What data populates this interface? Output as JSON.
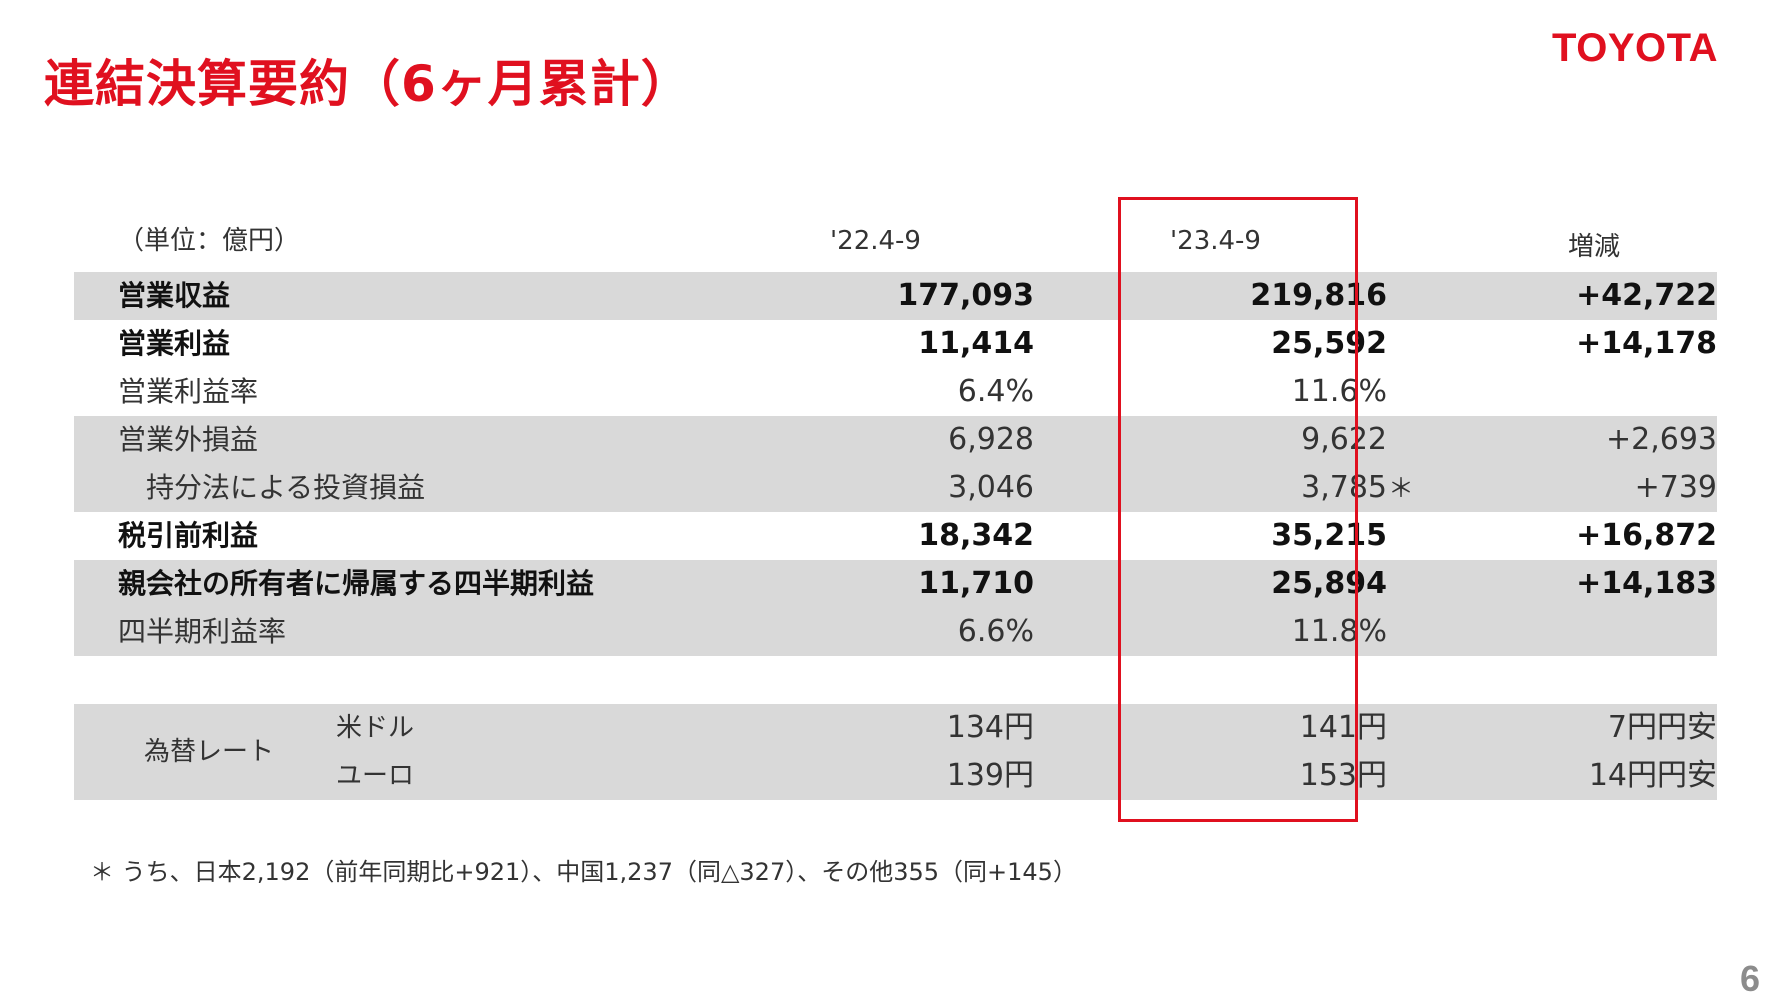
{
  "header": {
    "title": "連結決算要約（6ヶ月累計）",
    "brand": "TOYOTA",
    "page_number": "6"
  },
  "table": {
    "unit_label": "（単位：億円）",
    "columns": [
      "'22.4-9",
      "'23.4-9",
      "増減"
    ],
    "rows": [
      {
        "label": "営業収益",
        "values": [
          "177,093",
          "219,816",
          "+42,722"
        ]
      },
      {
        "label": "営業利益",
        "values": [
          "11,414",
          "25,592",
          "+14,178"
        ]
      },
      {
        "label": "営業利益率",
        "values": [
          "6.4%",
          "11.6%",
          ""
        ]
      },
      {
        "label": "営業外損益",
        "values": [
          "6,928",
          "9,622",
          "+2,693"
        ]
      },
      {
        "label": "持分法による投資損益",
        "values": [
          "3,046",
          "3,785",
          "+739"
        ],
        "mark": "＊"
      },
      {
        "label": "税引前利益",
        "values": [
          "18,342",
          "35,215",
          "+16,872"
        ]
      },
      {
        "label": "親会社の所有者に帰属する四半期利益",
        "values": [
          "11,710",
          "25,894",
          "+14,183"
        ]
      },
      {
        "label": "四半期利益率",
        "values": [
          "6.6%",
          "11.8%",
          ""
        ]
      }
    ],
    "fx": {
      "title": "為替レート",
      "rows": [
        {
          "label": "米ドル",
          "values": [
            "134円",
            "141円",
            "7円円安"
          ]
        },
        {
          "label": "ユーロ",
          "values": [
            "139円",
            "153円",
            "14円円安"
          ]
        }
      ]
    }
  },
  "footnote": "＊ うち、日本2,192（前年同期比+921）、中国1,237（同△327）、その他355（同+145）",
  "colors": {
    "accent": "#e0101f",
    "band": "#d9d9d9",
    "page_number": "#8c8c8c"
  }
}
